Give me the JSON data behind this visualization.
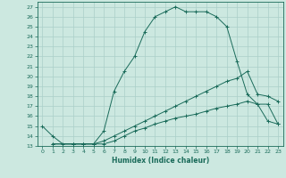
{
  "xlabel": "Humidex (Indice chaleur)",
  "xlim": [
    -0.5,
    23.5
  ],
  "ylim": [
    13,
    27.5
  ],
  "xticks": [
    0,
    1,
    2,
    3,
    4,
    5,
    6,
    7,
    8,
    9,
    10,
    11,
    12,
    13,
    14,
    15,
    16,
    17,
    18,
    19,
    20,
    21,
    22,
    23
  ],
  "yticks": [
    13,
    14,
    15,
    16,
    17,
    18,
    19,
    20,
    21,
    22,
    23,
    24,
    25,
    26,
    27
  ],
  "bg_color": "#cce8e0",
  "line_color": "#1a6b5a",
  "grid_color": "#aacfc8",
  "line1_x": [
    0,
    1,
    2,
    3,
    4,
    5,
    6,
    7,
    8,
    9,
    10,
    11,
    12,
    13,
    14,
    15,
    16,
    17,
    18,
    19,
    20,
    21,
    22,
    23
  ],
  "line1_y": [
    15.0,
    14.0,
    13.2,
    13.2,
    13.2,
    13.2,
    14.5,
    18.5,
    20.5,
    22.0,
    24.5,
    26.0,
    26.5,
    27.0,
    26.5,
    26.5,
    26.5,
    26.0,
    25.0,
    21.5,
    18.2,
    17.2,
    17.2,
    15.2
  ],
  "line2_x": [
    1,
    3,
    4,
    5,
    6,
    7,
    8,
    9,
    10,
    11,
    12,
    13,
    14,
    15,
    16,
    17,
    18,
    19,
    20,
    21,
    22,
    23
  ],
  "line2_y": [
    13.2,
    13.2,
    13.2,
    13.2,
    13.5,
    14.0,
    14.5,
    15.0,
    15.5,
    16.0,
    16.5,
    17.0,
    17.5,
    18.0,
    18.5,
    19.0,
    19.5,
    19.8,
    20.5,
    18.2,
    18.0,
    17.5
  ],
  "line3_x": [
    1,
    3,
    4,
    5,
    6,
    7,
    8,
    9,
    10,
    11,
    12,
    13,
    14,
    15,
    16,
    17,
    18,
    19,
    20,
    21,
    22,
    23
  ],
  "line3_y": [
    13.2,
    13.2,
    13.2,
    13.2,
    13.2,
    13.5,
    14.0,
    14.5,
    14.8,
    15.2,
    15.5,
    15.8,
    16.0,
    16.2,
    16.5,
    16.8,
    17.0,
    17.2,
    17.5,
    17.2,
    15.5,
    15.2
  ]
}
